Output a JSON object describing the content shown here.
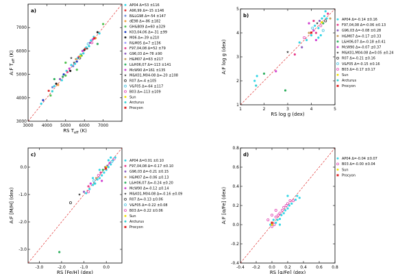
{
  "chart_data": [
    {
      "id": "a",
      "type": "scatter",
      "panel_label": "a)",
      "xlabel": "RS T",
      "xlabel_sub": "eff",
      "xlabel_unit": " (K)",
      "ylabel": "A:F T",
      "ylabel_sub": "eff",
      "ylabel_unit": " (K)",
      "xlim": [
        3000,
        8000
      ],
      "ylim": [
        3000,
        8000
      ],
      "xticks": [
        3000,
        4000,
        5000,
        6000,
        7000
      ],
      "yticks": [
        3000,
        4000,
        5000,
        6000,
        7000
      ],
      "xtick_labels": [
        "3000",
        "4000",
        "5000",
        "6000",
        "7000"
      ],
      "ytick_labels": [
        "3000",
        "4000",
        "5000",
        "6000",
        "7000"
      ],
      "legend": [
        {
          "label": "AP04 Δ=53 ±116",
          "color": "#33d6e6",
          "marker": "circle"
        },
        {
          "label": "A96,99 Δ=-15 ±146",
          "color": "#e03030",
          "marker": "circle"
        },
        {
          "label": "B&LG98 Δ=-54 ±147",
          "color": "#6a8ad8",
          "marker": "circle"
        },
        {
          "label": "dE98 Δ=-86 ±182",
          "color": "#f0a040",
          "marker": "circle"
        },
        {
          "label": "GH&B09 Δ=60 ±329",
          "color": "#50c050",
          "marker": "circle"
        },
        {
          "label": "K03,04,06 Δ=-31 ±99",
          "color": "#2040c0",
          "marker": "circle"
        },
        {
          "label": "M06 Δ=-39 ±210",
          "color": "#202020",
          "marker": "circle"
        },
        {
          "label": "R&M05 Δ=7 ±136",
          "color": "#a0a0ff",
          "marker": "circle"
        },
        {
          "label": "F97,04,08 Δ=52 ±79",
          "color": "#e83e8c",
          "marker": "circle"
        },
        {
          "label": "G96,03 Δ=-78 ±90",
          "color": "#9060c0",
          "marker": "circle"
        },
        {
          "label": "H&M07 Δ=63 ±217",
          "color": "#c8a060",
          "marker": "circle"
        },
        {
          "label": "L&H06,07 Δ=-113 ±141",
          "color": "#30b060",
          "marker": "circle"
        },
        {
          "label": "McW90 Δ=161 ±135",
          "color": "#d040d0",
          "marker": "circle"
        },
        {
          "label": "M&K01,M04-08 Δ=-20 ±108",
          "color": "#404040",
          "marker": "star"
        },
        {
          "label": "R07 Δ=-4 ±105",
          "color": "#303030",
          "marker": "open"
        },
        {
          "label": "V&F05 Δ=-64 ±117",
          "color": "#40c0e0",
          "marker": "open"
        },
        {
          "label": "B03 Δ=-113 ±109",
          "color": "#e040b0",
          "marker": "open"
        },
        {
          "label": "Sun",
          "color": "#f0e000",
          "marker": "circle"
        },
        {
          "label": "Arcturus",
          "color": "#30d0d0",
          "marker": "circle"
        },
        {
          "label": "Procyon",
          "color": "#e02020",
          "marker": "square"
        }
      ],
      "points": [
        [
          3700,
          3750,
          0
        ],
        [
          3800,
          3900,
          5
        ],
        [
          4100,
          4300,
          1
        ],
        [
          4200,
          4100,
          4
        ],
        [
          4300,
          4450,
          2
        ],
        [
          4400,
          4500,
          0
        ],
        [
          4500,
          4600,
          6
        ],
        [
          4600,
          4550,
          3
        ],
        [
          4700,
          4800,
          9
        ],
        [
          4800,
          4750,
          0
        ],
        [
          4850,
          4900,
          11
        ],
        [
          4900,
          5000,
          5
        ],
        [
          5000,
          4950,
          4
        ],
        [
          5050,
          5150,
          0
        ],
        [
          5100,
          5100,
          8
        ],
        [
          5200,
          5250,
          12
        ],
        [
          5250,
          5150,
          6
        ],
        [
          5300,
          5400,
          0
        ],
        [
          5400,
          5350,
          2
        ],
        [
          5450,
          5500,
          13
        ],
        [
          5500,
          5450,
          0
        ],
        [
          5550,
          5650,
          10
        ],
        [
          5600,
          5550,
          5
        ],
        [
          5650,
          5700,
          0
        ],
        [
          5700,
          5750,
          8
        ],
        [
          5750,
          5700,
          14
        ],
        [
          5800,
          5850,
          0
        ],
        [
          5850,
          5800,
          4
        ],
        [
          5900,
          6000,
          12
        ],
        [
          5950,
          5900,
          0
        ],
        [
          6000,
          6050,
          6
        ],
        [
          6050,
          6100,
          1
        ],
        [
          6100,
          6150,
          0
        ],
        [
          6150,
          6100,
          13
        ],
        [
          6200,
          6300,
          15
        ],
        [
          6250,
          6200,
          0
        ],
        [
          6300,
          6350,
          9
        ],
        [
          6350,
          6450,
          0
        ],
        [
          6400,
          6350,
          16
        ],
        [
          6450,
          6500,
          12
        ],
        [
          6500,
          6600,
          0
        ],
        [
          6600,
          6550,
          3
        ],
        [
          6700,
          6800,
          6
        ],
        [
          6800,
          6750,
          0
        ],
        [
          7000,
          7150,
          4
        ],
        [
          5600,
          5200,
          4
        ],
        [
          5000,
          5500,
          4
        ],
        [
          4400,
          4800,
          11
        ],
        [
          5300,
          5700,
          13
        ],
        [
          6700,
          6300,
          11
        ],
        [
          5780,
          5780,
          17
        ],
        [
          4290,
          4280,
          18
        ],
        [
          6530,
          6540,
          19
        ]
      ]
    },
    {
      "id": "b",
      "type": "scatter",
      "panel_label": "b)",
      "xlabel": "RS log g (dex)",
      "ylabel": "A:F log g (dex)",
      "xlim": [
        1,
        5
      ],
      "ylim": [
        1,
        5
      ],
      "xticks": [
        1,
        2,
        3,
        4,
        5
      ],
      "yticks": [
        1,
        2,
        3,
        4,
        5
      ],
      "xtick_labels": [
        "1",
        "2",
        "3",
        "4",
        "5"
      ],
      "ytick_labels": [
        "1",
        "2",
        "3",
        "4",
        "5"
      ],
      "legend": [
        {
          "label": "AP04 Δ=-0.14 ±0.16",
          "color": "#33d6e6",
          "marker": "circle"
        },
        {
          "label": "F97,04,08 Δ=-0.06 ±0.13",
          "color": "#e83e8c",
          "marker": "circle"
        },
        {
          "label": "G96,03 Δ=-0.08 ±0.28",
          "color": "#9060c0",
          "marker": "circle"
        },
        {
          "label": "H&M07 Δ=-0.17 ±0.33",
          "color": "#c8a060",
          "marker": "circle"
        },
        {
          "label": "L&H06,07 Δ=-0.18 ±0.41",
          "color": "#30b060",
          "marker": "circle"
        },
        {
          "label": "McW90 Δ=-0.07 ±0.37",
          "color": "#d040d0",
          "marker": "circle"
        },
        {
          "label": "M&K01,M04-08 Δ=0.05 ±0.24",
          "color": "#404040",
          "marker": "star"
        },
        {
          "label": "R07 Δ=-0.21 ±0.16",
          "color": "#303030",
          "marker": "open"
        },
        {
          "label": "V&F05 Δ=-0.15 ±0.16",
          "color": "#40c0e0",
          "marker": "open"
        },
        {
          "label": "B03 Δ=-0.17 ±0.17",
          "color": "#e040b0",
          "marker": "open"
        },
        {
          "label": "Sun",
          "color": "#f0e000",
          "marker": "circle"
        },
        {
          "label": "Arcturus",
          "color": "#30d0d0",
          "marker": "circle"
        },
        {
          "label": "Procyon",
          "color": "#e02020",
          "marker": "square"
        }
      ],
      "points": [
        [
          1.6,
          2.0,
          0
        ],
        [
          1.7,
          2.2,
          0
        ],
        [
          2.0,
          2.3,
          4
        ],
        [
          2.5,
          2.4,
          5
        ],
        [
          2.9,
          1.6,
          4
        ],
        [
          3.0,
          3.2,
          6
        ],
        [
          3.3,
          3.1,
          1
        ],
        [
          3.5,
          3.6,
          0
        ],
        [
          3.6,
          3.4,
          2
        ],
        [
          3.7,
          3.8,
          9
        ],
        [
          3.8,
          3.7,
          0
        ],
        [
          3.9,
          4.0,
          3
        ],
        [
          4.0,
          3.9,
          0
        ],
        [
          4.05,
          4.2,
          8
        ],
        [
          4.1,
          4.1,
          5
        ],
        [
          4.15,
          4.3,
          0
        ],
        [
          4.2,
          4.0,
          1
        ],
        [
          4.25,
          4.4,
          6
        ],
        [
          4.3,
          4.2,
          0
        ],
        [
          4.35,
          4.5,
          2
        ],
        [
          4.4,
          4.3,
          9
        ],
        [
          4.45,
          4.6,
          0
        ],
        [
          4.5,
          4.4,
          4
        ],
        [
          4.55,
          4.7,
          0
        ],
        [
          4.6,
          4.5,
          7
        ],
        [
          4.65,
          4.6,
          0
        ],
        [
          4.7,
          4.8,
          1
        ],
        [
          4.3,
          3.8,
          0
        ],
        [
          4.2,
          3.7,
          5
        ],
        [
          4.4,
          3.9,
          0
        ],
        [
          4.5,
          4.1,
          8
        ],
        [
          3.9,
          4.4,
          5
        ],
        [
          4.1,
          4.5,
          1
        ],
        [
          4.6,
          4.9,
          0
        ],
        [
          4.8,
          4.6,
          3
        ],
        [
          4.44,
          4.44,
          10
        ],
        [
          1.66,
          1.8,
          11
        ],
        [
          4.0,
          4.01,
          12
        ]
      ]
    },
    {
      "id": "c",
      "type": "scatter",
      "panel_label": "c)",
      "xlabel": "RS [Fe/H] (dex)",
      "ylabel": "A:F [M/H] (dex)",
      "xlim": [
        -3.5,
        0.7
      ],
      "ylim": [
        -3.5,
        0.7
      ],
      "xticks": [
        -3.0,
        -2.0,
        -1.0,
        0.0
      ],
      "yticks": [
        -3.0,
        -2.0,
        -1.0,
        0.0
      ],
      "xtick_labels": [
        "-3.0",
        "-2.0",
        "-1.0",
        "0.0"
      ],
      "ytick_labels": [
        "-3.0",
        "-2.0",
        "-1.0",
        "0.0"
      ],
      "legend": [
        {
          "label": "AP04 Δ=0.01 ±0.10",
          "color": "#33d6e6",
          "marker": "circle"
        },
        {
          "label": "F97,04,08 Δ=-0.17 ±0.10",
          "color": "#e83e8c",
          "marker": "circle"
        },
        {
          "label": "G96,03 Δ=-0.21 ±0.15",
          "color": "#9060c0",
          "marker": "circle"
        },
        {
          "label": "H&M07 Δ=-0.06 ±0.13",
          "color": "#c8a060",
          "marker": "circle"
        },
        {
          "label": "L&H06,07 Δ=-0.24 ±0.20",
          "color": "#30b060",
          "marker": "circle"
        },
        {
          "label": "McW90 Δ=-0.12 ±0.14",
          "color": "#d040d0",
          "marker": "circle"
        },
        {
          "label": "M&K01,M04-08 Δ=-0.16 ±0.09",
          "color": "#404040",
          "marker": "star"
        },
        {
          "label": "R07 Δ=-0.13 ±0.06",
          "color": "#303030",
          "marker": "open"
        },
        {
          "label": "V&F05 Δ=-0.22 ±0.08",
          "color": "#40c0e0",
          "marker": "open"
        },
        {
          "label": "B03 Δ=-0.22 ±0.06",
          "color": "#e040b0",
          "marker": "open"
        },
        {
          "label": "Sun",
          "color": "#f0e000",
          "marker": "circle"
        },
        {
          "label": "Arcturus",
          "color": "#30d0d0",
          "marker": "circle"
        },
        {
          "label": "Procyon",
          "color": "#e02020",
          "marker": "square"
        }
      ],
      "points": [
        [
          -2.1,
          -3.1,
          4
        ],
        [
          -1.6,
          -1.3,
          7
        ],
        [
          -1.2,
          -1.0,
          6
        ],
        [
          -1.0,
          -0.9,
          2
        ],
        [
          -0.9,
          -0.95,
          0
        ],
        [
          -0.8,
          -0.7,
          1
        ],
        [
          -0.75,
          -0.8,
          0
        ],
        [
          -0.7,
          -0.6,
          5
        ],
        [
          -0.6,
          -0.65,
          0
        ],
        [
          -0.55,
          -0.5,
          8
        ],
        [
          -0.5,
          -0.6,
          0
        ],
        [
          -0.45,
          -0.4,
          3
        ],
        [
          -0.4,
          -0.45,
          0
        ],
        [
          -0.35,
          -0.3,
          9
        ],
        [
          -0.3,
          -0.4,
          0
        ],
        [
          -0.25,
          -0.2,
          1
        ],
        [
          -0.2,
          -0.3,
          0
        ],
        [
          -0.15,
          -0.1,
          4
        ],
        [
          -0.1,
          -0.2,
          0
        ],
        [
          -0.05,
          0.0,
          6
        ],
        [
          0.0,
          -0.1,
          0
        ],
        [
          0.05,
          0.05,
          2
        ],
        [
          0.1,
          0.0,
          0
        ],
        [
          0.15,
          0.15,
          5
        ],
        [
          0.2,
          0.1,
          0
        ],
        [
          0.25,
          0.2,
          8
        ],
        [
          0.3,
          0.25,
          0
        ],
        [
          0.35,
          0.3,
          9
        ],
        [
          0.4,
          0.35,
          0
        ],
        [
          -0.3,
          -0.1,
          0
        ],
        [
          -0.6,
          -0.4,
          0
        ],
        [
          0.1,
          0.25,
          0
        ],
        [
          -0.2,
          -0.5,
          5
        ],
        [
          -0.8,
          -0.9,
          9
        ],
        [
          0.2,
          0.35,
          0
        ],
        [
          0.0,
          0.0,
          10
        ],
        [
          -0.52,
          -0.6,
          11
        ],
        [
          -0.02,
          -0.05,
          12
        ]
      ]
    },
    {
      "id": "d",
      "type": "scatter",
      "panel_label": "d)",
      "xlabel": "RS [α/Fe] (dex)",
      "ylabel": "A:F [α/Fe] (dex)",
      "xlim": [
        -0.4,
        0.8
      ],
      "ylim": [
        -0.4,
        0.8
      ],
      "xticks": [
        -0.4,
        -0.2,
        0.0,
        0.2,
        0.4,
        0.6,
        0.8
      ],
      "yticks": [
        -0.4,
        -0.2,
        0.0,
        0.2,
        0.4,
        0.6,
        0.8
      ],
      "xtick_labels": [
        "-0.4",
        "-0.2",
        "0.0",
        "0.2",
        "0.4",
        "0.6",
        "0.8"
      ],
      "ytick_labels": [
        "-0.4",
        "-0.2",
        "0.0",
        "0.2",
        "0.4",
        "0.6",
        "0.8"
      ],
      "legend": [
        {
          "label": "AP04 Δ=-0.04 ±0.07",
          "color": "#33d6e6",
          "marker": "circle"
        },
        {
          "label": "B03 Δ=-0.00 ±0.04",
          "color": "#e040b0",
          "marker": "open"
        },
        {
          "label": "Sun",
          "color": "#f0e000",
          "marker": "circle"
        },
        {
          "label": "Procyon",
          "color": "#e02020",
          "marker": "square"
        }
      ],
      "points": [
        [
          -0.02,
          0.0,
          0
        ],
        [
          0.0,
          -0.02,
          1
        ],
        [
          0.02,
          0.05,
          0
        ],
        [
          0.03,
          0.0,
          1
        ],
        [
          0.05,
          0.02,
          0
        ],
        [
          0.05,
          0.08,
          1
        ],
        [
          0.07,
          0.05,
          0
        ],
        [
          0.08,
          0.1,
          1
        ],
        [
          0.1,
          0.06,
          0
        ],
        [
          0.1,
          0.12,
          1
        ],
        [
          0.12,
          0.1,
          0
        ],
        [
          0.13,
          0.15,
          1
        ],
        [
          0.15,
          0.12,
          0
        ],
        [
          0.15,
          0.18,
          1
        ],
        [
          0.17,
          0.15,
          0
        ],
        [
          0.18,
          0.2,
          1
        ],
        [
          0.2,
          0.17,
          0
        ],
        [
          0.2,
          0.22,
          1
        ],
        [
          0.22,
          0.2,
          0
        ],
        [
          0.23,
          0.25,
          1
        ],
        [
          0.25,
          0.22,
          0
        ],
        [
          0.27,
          0.25,
          1
        ],
        [
          0.3,
          0.26,
          0
        ],
        [
          0.32,
          0.3,
          0
        ],
        [
          0.35,
          0.28,
          0
        ],
        [
          0.0,
          0.1,
          1
        ],
        [
          0.1,
          0.0,
          0
        ],
        [
          0.05,
          0.15,
          1
        ],
        [
          0.2,
          0.3,
          0
        ],
        [
          -0.05,
          0.05,
          1
        ],
        [
          0.0,
          0.0,
          2
        ],
        [
          0.0,
          0.02,
          3
        ]
      ]
    }
  ]
}
